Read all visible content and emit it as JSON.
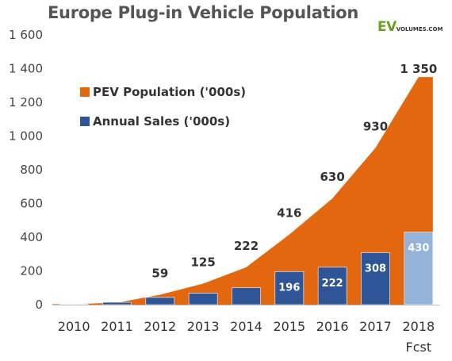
{
  "title": "Europe Plug-in Vehicle Population",
  "logo": {
    "ev": "EV",
    "rest": "VOLUMES.COM"
  },
  "x_note": "Fcst",
  "colors": {
    "population": "#e2670f",
    "sales": "#2e5597",
    "sales_forecast": "#95b2d9",
    "axis": "#bfbfbf"
  },
  "chart_data": {
    "type": "bar",
    "categories": [
      "2010",
      "2011",
      "2012",
      "2013",
      "2014",
      "2015",
      "2016",
      "2017",
      "2018"
    ],
    "ylim": [
      0,
      1600
    ],
    "yticks": [
      0,
      200,
      400,
      600,
      800,
      1000,
      1200,
      1400,
      1600
    ],
    "ytick_labels": [
      "0",
      "200",
      "400",
      "600",
      "800",
      "1 000",
      "1 200",
      "1 400",
      "1 600"
    ],
    "series": [
      {
        "name": "PEV Population ('000s)",
        "type": "area",
        "values": [
          3,
          12,
          59,
          125,
          222,
          416,
          630,
          930,
          1350
        ],
        "labels": [
          "",
          "",
          "59",
          "125",
          "222",
          "416",
          "630",
          "930",
          "1 350"
        ]
      },
      {
        "name": "Annual Sales ('000s)",
        "type": "bar",
        "values": [
          3,
          14,
          43,
          68,
          100,
          196,
          222,
          308,
          430
        ],
        "labels": [
          "",
          "",
          "",
          "",
          "",
          "196",
          "222",
          "308",
          "430"
        ],
        "forecast_index": 8
      }
    ],
    "legend": "top-left"
  }
}
